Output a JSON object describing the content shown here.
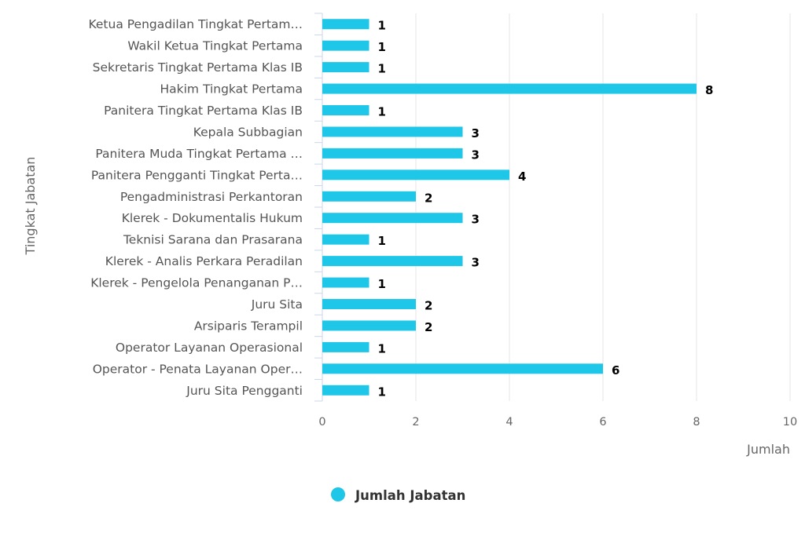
{
  "chart_data": {
    "type": "bar",
    "orientation": "horizontal",
    "categories": [
      "Ketua Pengadilan Tingkat Pertam…",
      "Wakil Ketua Tingkat Pertama",
      "Sekretaris Tingkat Pertama Klas IB",
      "Hakim Tingkat Pertama",
      "Panitera Tingkat Pertama Klas IB",
      "Kepala Subbagian",
      "Panitera Muda Tingkat Pertama …",
      "Panitera Pengganti Tingkat Perta…",
      "Pengadministrasi Perkantoran",
      "Klerek - Dokumentalis Hukum",
      "Teknisi Sarana dan Prasarana",
      "Klerek - Analis Perkara Peradilan",
      "Klerek - Pengelola Penanganan P…",
      "Juru Sita",
      "Arsiparis Terampil",
      "Operator Layanan Operasional",
      "Operator - Penata Layanan Oper…",
      "Juru Sita Pengganti"
    ],
    "series": [
      {
        "name": "Jumlah Jabatan",
        "values": [
          1,
          1,
          1,
          8,
          1,
          3,
          3,
          4,
          2,
          3,
          1,
          3,
          1,
          2,
          2,
          1,
          6,
          1
        ],
        "color": "#1ec6e8"
      }
    ],
    "xlabel": "Jumlah",
    "ylabel": "Tingkat Jabatan",
    "xlim": [
      0,
      10
    ],
    "xticks": [
      0,
      2,
      4,
      6,
      8,
      10
    ],
    "grid": true,
    "legend": "bottom-center"
  }
}
